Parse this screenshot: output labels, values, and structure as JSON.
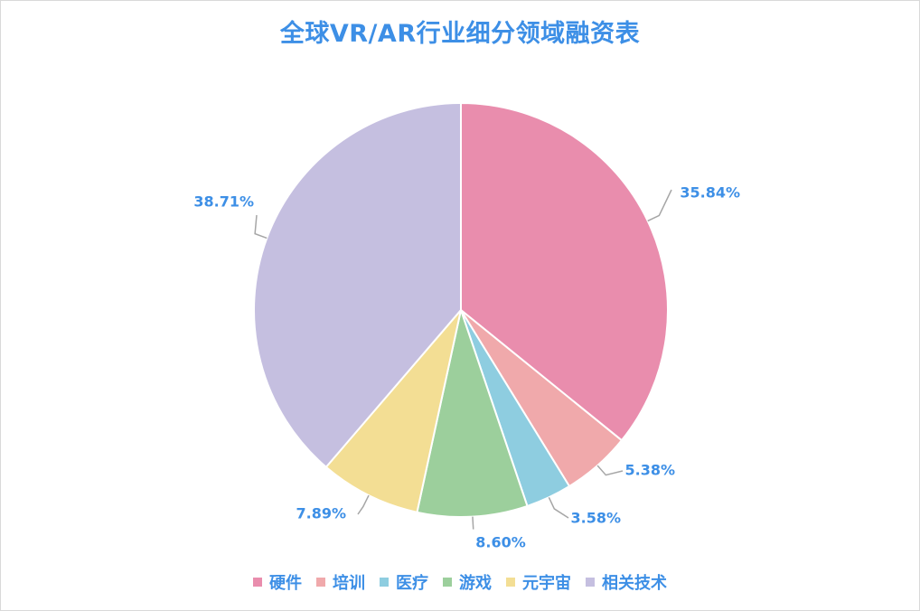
{
  "chart_data": {
    "type": "pie",
    "title": "全球VR/AR行业细分领域融资表",
    "categories": [
      "硬件",
      "培训",
      "医疗",
      "游戏",
      "元宇宙",
      "相关技术"
    ],
    "values": [
      35.84,
      5.38,
      3.58,
      8.6,
      7.89,
      38.71
    ],
    "labels": [
      "35.84%",
      "5.38%",
      "3.58%",
      "8.60%",
      "7.89%",
      "38.71%"
    ],
    "colors": [
      "#e98dad",
      "#f0a9ab",
      "#8ecde0",
      "#9ccf9c",
      "#f3de94",
      "#c5bfe0"
    ],
    "legend_position": "bottom",
    "start_angle": "12 o'clock",
    "direction": "clockwise"
  }
}
